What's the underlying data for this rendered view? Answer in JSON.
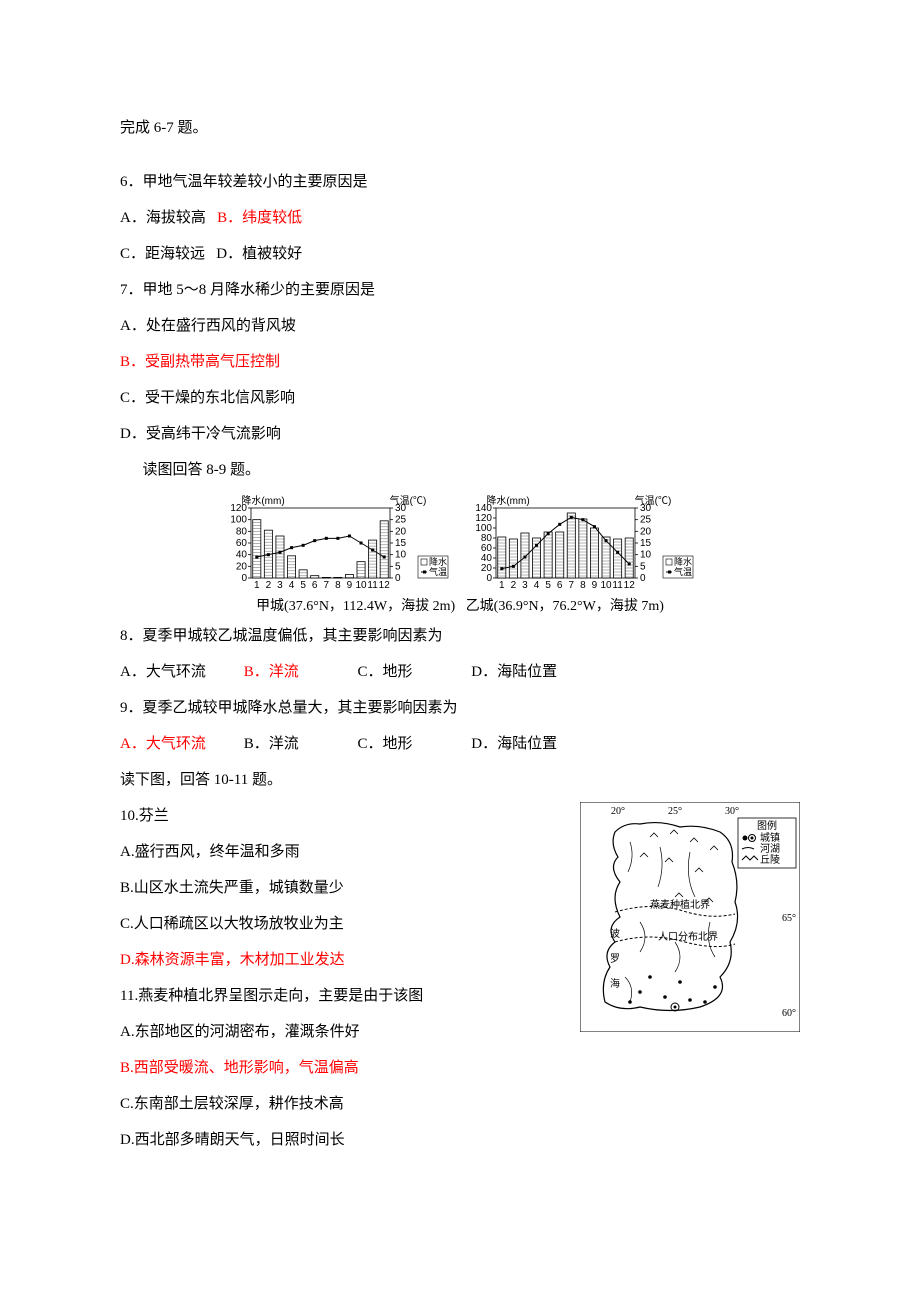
{
  "intro67": "完成 6-7 题。",
  "q6": {
    "stem": "6．甲地气温年较差较小的主要原因是",
    "A": "A．海拔较高",
    "B": "B．纬度较低",
    "C": "C．距海较远",
    "D": "D．植被较好"
  },
  "q7": {
    "stem": "7．甲地 5～8 月降水稀少的主要原因是",
    "A": "A．处在盛行西风的背风坡",
    "B": "B．受副热带高气压控制",
    "C": "C．受干燥的东北信风影响",
    "D": "D．受高纬干冷气流影响"
  },
  "intro89": "读图回答 8-9 题。",
  "chart_jia": {
    "title_left": "降水(mm)",
    "title_right": "气温(℃)",
    "y_left_ticks": [
      "0",
      "20",
      "40",
      "60",
      "80",
      "100",
      "120"
    ],
    "y_right_ticks": [
      "0",
      "5",
      "10",
      "15",
      "20",
      "25",
      "30"
    ],
    "x_ticks": [
      "1",
      "2",
      "3",
      "4",
      "5",
      "6",
      "7",
      "8",
      "9",
      "10",
      "11",
      "12"
    ],
    "precip": [
      100,
      82,
      72,
      38,
      14,
      4,
      1,
      1,
      6,
      28,
      65,
      98
    ],
    "precip_max": 120,
    "temp": [
      9,
      10,
      11,
      13,
      14,
      16,
      17,
      17,
      18,
      15,
      12,
      9
    ],
    "temp_max": 30,
    "bar_color": "#ffffff",
    "bar_border": "#000000",
    "line_color": "#000000",
    "bg": "#ffffff",
    "legend_precip": "降水",
    "legend_temp": "气温",
    "caption": "甲城(37.6°N，112.4W，海拔 2m)"
  },
  "chart_yi": {
    "title_left": "降水(mm)",
    "title_right": "气温(℃)",
    "y_left_ticks": [
      "0",
      "20",
      "40",
      "60",
      "80",
      "100",
      "120",
      "140"
    ],
    "y_right_ticks": [
      "0",
      "5",
      "10",
      "15",
      "20",
      "25",
      "30"
    ],
    "x_ticks": [
      "1",
      "2",
      "3",
      "4",
      "5",
      "6",
      "7",
      "8",
      "9",
      "10",
      "11",
      "12"
    ],
    "precip": [
      82,
      78,
      90,
      80,
      92,
      92,
      130,
      118,
      100,
      82,
      78,
      80
    ],
    "precip_max": 140,
    "temp": [
      4,
      5,
      9,
      14,
      19,
      23,
      26,
      25,
      22,
      16,
      11,
      6
    ],
    "temp_max": 30,
    "bar_color": "#ffffff",
    "bar_border": "#000000",
    "line_color": "#000000",
    "bg": "#ffffff",
    "legend_precip": "降水",
    "legend_temp": "气温",
    "caption": "乙城(36.9°N，76.2°W，海拔 7m)"
  },
  "q8": {
    "stem": "8．夏季甲城较乙城温度偏低，其主要影响因素为",
    "A": "A．大气环流",
    "B": "B．洋流",
    "C": "C．地形",
    "D": "D．海陆位置"
  },
  "q9": {
    "stem": "9．夏季乙城较甲城降水总量大，其主要影响因素为",
    "A": "A．大气环流",
    "B": "B．洋流",
    "C": "C．地形",
    "D": "D．海陆位置"
  },
  "intro1011": "读下图，回答 10-11 题。",
  "q10": {
    "stem": "10.芬兰",
    "A": "A.盛行西风，终年温和多雨",
    "B": "B.山区水土流失严重，城镇数量少",
    "C": "C.人口稀疏区以大牧场放牧业为主",
    "D": "D.森林资源丰富，木材加工业发达"
  },
  "q11": {
    "stem": "11.燕麦种植北界呈图示走向，主要是由于该图",
    "A": "A.东部地区的河湖密布，灌溉条件好",
    "B": "B.西部受暖流、地形影响，气温偏高",
    "C": "C.东南部土层较深厚，耕作技术高",
    "D": "D.西北部多晴朗天气，日照时间长"
  },
  "map": {
    "lon_ticks": [
      "20°",
      "25°",
      "30°"
    ],
    "lat_ticks": [
      "70°",
      "65°",
      "60°"
    ],
    "legend_title": "图例",
    "legend_towns": "城镇",
    "legend_rivers": "河湖",
    "legend_hills": "丘陵",
    "label1": "燕麦种植北界",
    "label2": "人口分布北界",
    "label_bo": "波",
    "label_luo": "罗",
    "label_hai": "海",
    "line_color": "#000000",
    "bg": "#ffffff"
  }
}
